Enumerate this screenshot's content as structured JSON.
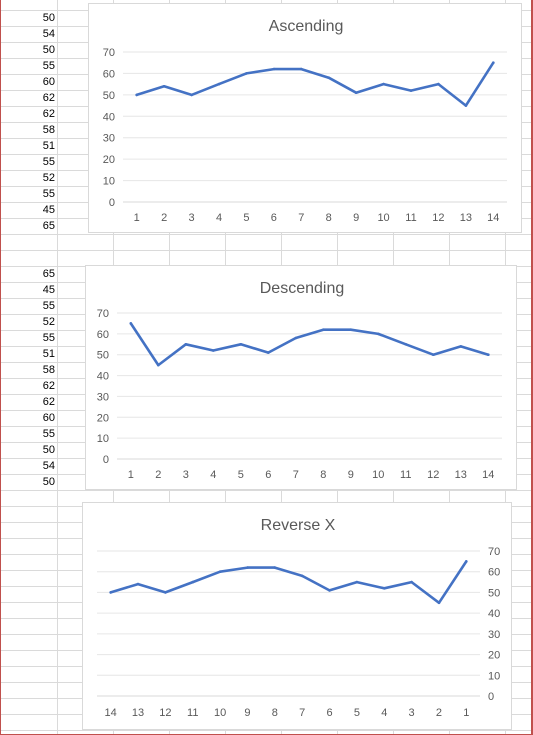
{
  "sheet": {
    "column_a_block1": [
      "50",
      "54",
      "50",
      "55",
      "60",
      "62",
      "62",
      "58",
      "51",
      "55",
      "52",
      "55",
      "45",
      "65"
    ],
    "column_a_block2": [
      "65",
      "45",
      "55",
      "52",
      "55",
      "51",
      "58",
      "62",
      "62",
      "60",
      "55",
      "50",
      "54",
      "50"
    ]
  },
  "chart_data": [
    {
      "type": "line",
      "title": "Ascending",
      "categories": [
        "1",
        "2",
        "3",
        "4",
        "5",
        "6",
        "7",
        "8",
        "9",
        "10",
        "11",
        "12",
        "13",
        "14"
      ],
      "series": [
        {
          "values": [
            50,
            54,
            50,
            55,
            60,
            62,
            62,
            58,
            51,
            55,
            52,
            55,
            45,
            65
          ]
        }
      ],
      "yticks": [
        "0",
        "10",
        "20",
        "30",
        "40",
        "50",
        "60",
        "70"
      ],
      "ylim": [
        0,
        70
      ],
      "y_axis_side": "left",
      "x_reversed": false,
      "grid": true,
      "color": "#4472c4"
    },
    {
      "type": "line",
      "title": "Descending",
      "categories": [
        "1",
        "2",
        "3",
        "4",
        "5",
        "6",
        "7",
        "8",
        "9",
        "10",
        "11",
        "12",
        "13",
        "14"
      ],
      "series": [
        {
          "values": [
            65,
            45,
            55,
            52,
            55,
            51,
            58,
            62,
            62,
            60,
            55,
            50,
            54,
            50
          ]
        }
      ],
      "yticks": [
        "0",
        "10",
        "20",
        "30",
        "40",
        "50",
        "60",
        "70"
      ],
      "ylim": [
        0,
        70
      ],
      "y_axis_side": "left",
      "x_reversed": false,
      "grid": true,
      "color": "#4472c4"
    },
    {
      "type": "line",
      "title": "Reverse X",
      "categories": [
        "1",
        "2",
        "3",
        "4",
        "5",
        "6",
        "7",
        "8",
        "9",
        "10",
        "11",
        "12",
        "13",
        "14"
      ],
      "series": [
        {
          "values": [
            65,
            45,
            55,
            52,
            55,
            51,
            58,
            62,
            62,
            60,
            55,
            50,
            54,
            50
          ]
        }
      ],
      "yticks": [
        "0",
        "10",
        "20",
        "30",
        "40",
        "50",
        "60",
        "70"
      ],
      "ylim": [
        0,
        70
      ],
      "y_axis_side": "right",
      "x_reversed": true,
      "grid": true,
      "color": "#4472c4"
    }
  ]
}
